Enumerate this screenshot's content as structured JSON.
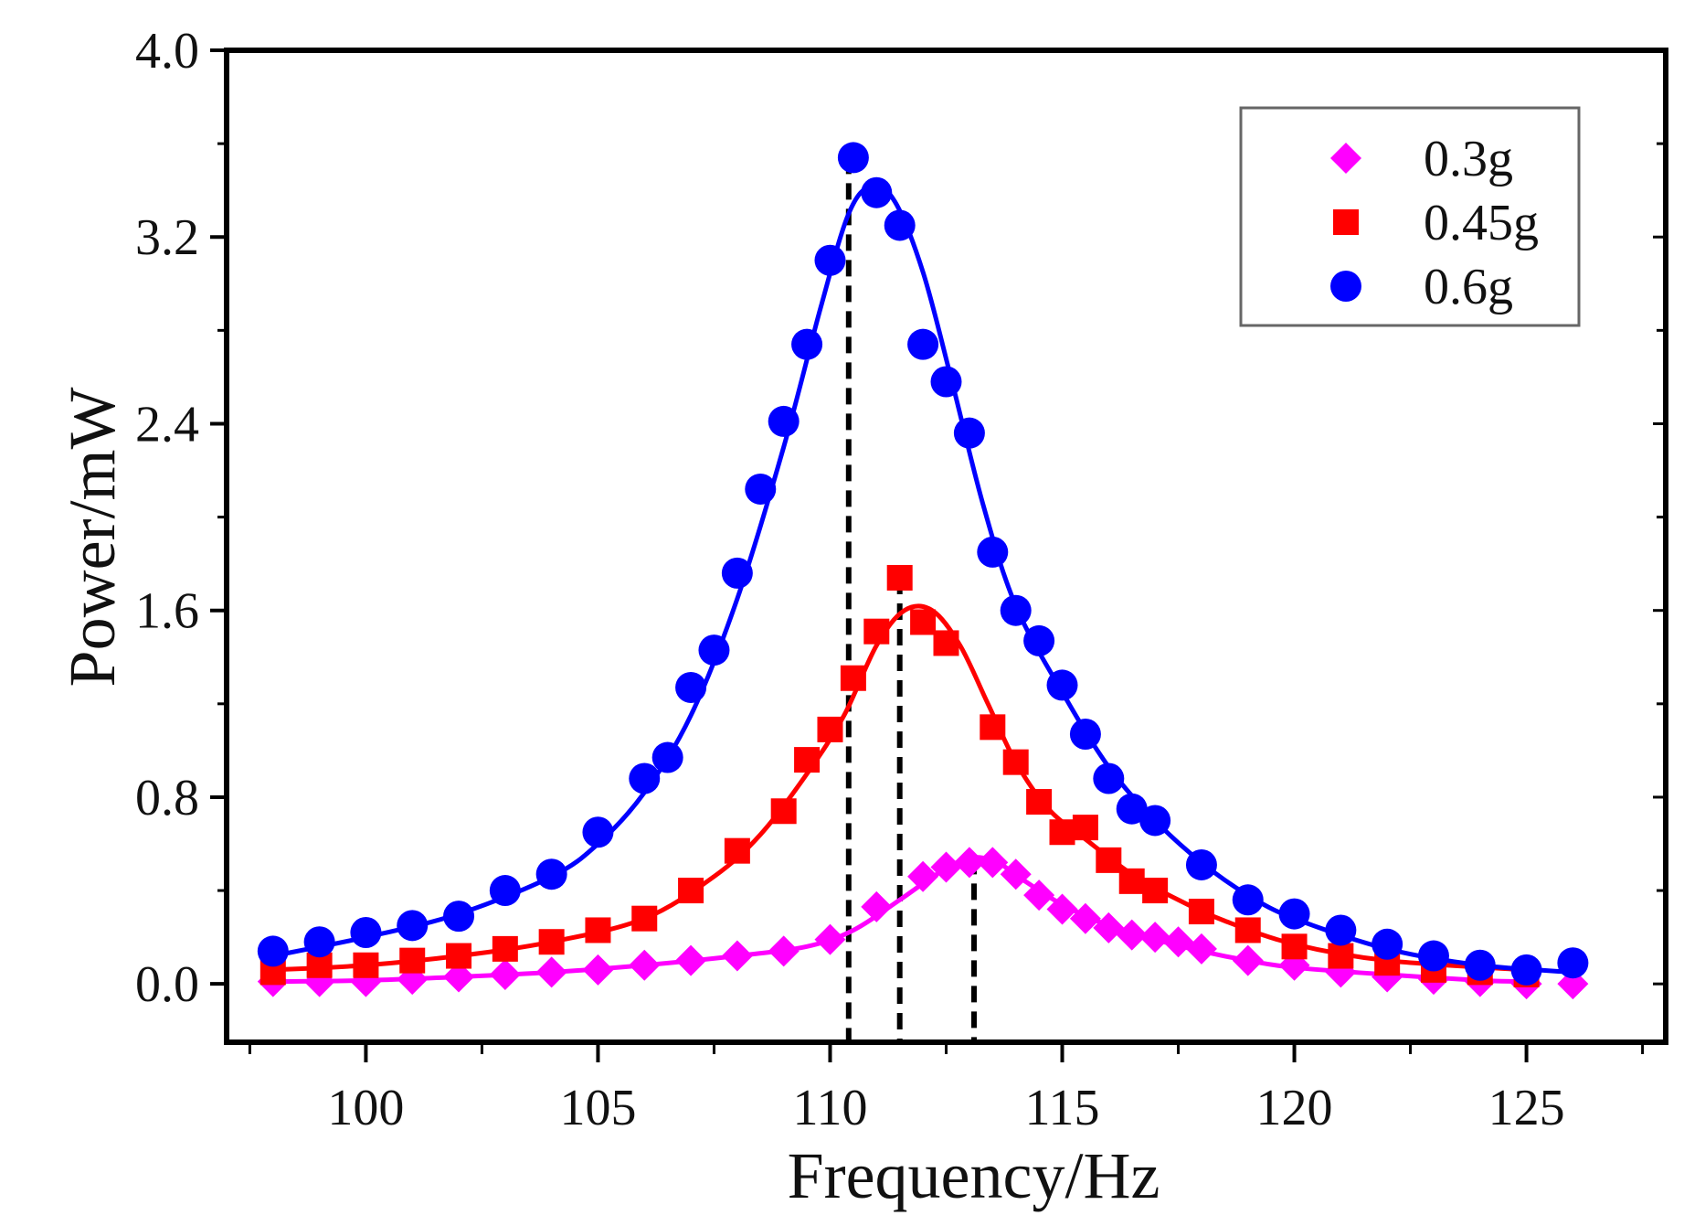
{
  "chart_data": {
    "type": "scatter",
    "title": "",
    "xlabel": "Frequency/Hz",
    "ylabel": "Power/mW",
    "xlim": [
      97,
      128
    ],
    "ylim": [
      -0.25,
      4.0
    ],
    "x_ticks": [
      100,
      105,
      110,
      115,
      120,
      125
    ],
    "x_tick_labels": [
      "100",
      "105",
      "110",
      "115",
      "120",
      "125"
    ],
    "y_ticks": [
      0.0,
      0.8,
      1.6,
      2.4,
      3.2,
      4.0
    ],
    "y_tick_labels": [
      "0.0",
      "0.8",
      "1.6",
      "2.4",
      "3.2",
      "4.0"
    ],
    "legend_position": "top-right",
    "series": [
      {
        "name": "0.3g",
        "marker": "diamond",
        "color": "#ff00ff",
        "points": [
          [
            98,
            0.01
          ],
          [
            99,
            0.01
          ],
          [
            100,
            0.01
          ],
          [
            101,
            0.02
          ],
          [
            102,
            0.03
          ],
          [
            103,
            0.04
          ],
          [
            104,
            0.05
          ],
          [
            105,
            0.06
          ],
          [
            106,
            0.08
          ],
          [
            107,
            0.1
          ],
          [
            108,
            0.12
          ],
          [
            109,
            0.14
          ],
          [
            110,
            0.19
          ],
          [
            111,
            0.33
          ],
          [
            112,
            0.46
          ],
          [
            112.5,
            0.5
          ],
          [
            113,
            0.52
          ],
          [
            113.5,
            0.52
          ],
          [
            114,
            0.47
          ],
          [
            114.5,
            0.38
          ],
          [
            115,
            0.32
          ],
          [
            115.5,
            0.28
          ],
          [
            116,
            0.24
          ],
          [
            116.5,
            0.21
          ],
          [
            117,
            0.2
          ],
          [
            117.5,
            0.18
          ],
          [
            118,
            0.15
          ],
          [
            119,
            0.1
          ],
          [
            120,
            0.08
          ],
          [
            121,
            0.05
          ],
          [
            122,
            0.03
          ],
          [
            123,
            0.02
          ],
          [
            124,
            0.01
          ],
          [
            125,
            0.0
          ],
          [
            126,
            0.0
          ]
        ],
        "fit": [
          [
            98,
            0.01
          ],
          [
            100,
            0.015
          ],
          [
            102,
            0.03
          ],
          [
            104,
            0.05
          ],
          [
            106,
            0.08
          ],
          [
            108,
            0.12
          ],
          [
            109.5,
            0.16
          ],
          [
            110.5,
            0.23
          ],
          [
            111.5,
            0.36
          ],
          [
            112.3,
            0.47
          ],
          [
            113,
            0.54
          ],
          [
            113.6,
            0.52
          ],
          [
            114.2,
            0.44
          ],
          [
            115,
            0.34
          ],
          [
            116,
            0.25
          ],
          [
            117,
            0.19
          ],
          [
            118,
            0.14
          ],
          [
            119,
            0.1
          ],
          [
            120,
            0.07
          ],
          [
            122,
            0.04
          ],
          [
            124,
            0.015
          ],
          [
            125,
            0.01
          ]
        ]
      },
      {
        "name": "0.45g",
        "marker": "square",
        "color": "#ff0000",
        "points": [
          [
            98,
            0.05
          ],
          [
            99,
            0.08
          ],
          [
            100,
            0.08
          ],
          [
            101,
            0.1
          ],
          [
            102,
            0.12
          ],
          [
            103,
            0.15
          ],
          [
            104,
            0.18
          ],
          [
            105,
            0.23
          ],
          [
            106,
            0.28
          ],
          [
            107,
            0.4
          ],
          [
            108,
            0.57
          ],
          [
            109,
            0.74
          ],
          [
            109.5,
            0.96
          ],
          [
            110,
            1.09
          ],
          [
            110.5,
            1.31
          ],
          [
            111,
            1.51
          ],
          [
            111.5,
            1.74
          ],
          [
            112,
            1.55
          ],
          [
            112.5,
            1.46
          ],
          [
            113.5,
            1.1
          ],
          [
            114,
            0.95
          ],
          [
            114.5,
            0.78
          ],
          [
            115,
            0.65
          ],
          [
            115.5,
            0.67
          ],
          [
            116,
            0.53
          ],
          [
            116.5,
            0.44
          ],
          [
            117,
            0.4
          ],
          [
            118,
            0.31
          ],
          [
            119,
            0.23
          ],
          [
            120,
            0.16
          ],
          [
            121,
            0.12
          ],
          [
            122,
            0.09
          ],
          [
            123,
            0.06
          ],
          [
            124,
            0.05
          ],
          [
            125,
            0.04
          ]
        ],
        "fit": [
          [
            98,
            0.06
          ],
          [
            100,
            0.08
          ],
          [
            102,
            0.12
          ],
          [
            104,
            0.18
          ],
          [
            106,
            0.28
          ],
          [
            107.5,
            0.46
          ],
          [
            108.5,
            0.64
          ],
          [
            109.5,
            0.9
          ],
          [
            110.3,
            1.15
          ],
          [
            111,
            1.45
          ],
          [
            111.6,
            1.6
          ],
          [
            112.2,
            1.6
          ],
          [
            112.8,
            1.45
          ],
          [
            113.4,
            1.2
          ],
          [
            114,
            0.95
          ],
          [
            114.7,
            0.75
          ],
          [
            115.5,
            0.62
          ],
          [
            116.5,
            0.47
          ],
          [
            117.5,
            0.36
          ],
          [
            118.5,
            0.27
          ],
          [
            120,
            0.17
          ],
          [
            122,
            0.1
          ],
          [
            125,
            0.06
          ]
        ]
      },
      {
        "name": "0.6g",
        "marker": "circle",
        "color": "#0000ff",
        "points": [
          [
            98,
            0.14
          ],
          [
            99,
            0.18
          ],
          [
            100,
            0.22
          ],
          [
            101,
            0.25
          ],
          [
            102,
            0.29
          ],
          [
            103,
            0.4
          ],
          [
            104,
            0.47
          ],
          [
            105,
            0.65
          ],
          [
            106,
            0.88
          ],
          [
            106.5,
            0.97
          ],
          [
            107,
            1.27
          ],
          [
            107.5,
            1.43
          ],
          [
            108,
            1.76
          ],
          [
            108.5,
            2.12
          ],
          [
            109,
            2.41
          ],
          [
            109.5,
            2.74
          ],
          [
            110,
            3.1
          ],
          [
            110.5,
            3.54
          ],
          [
            111,
            3.39
          ],
          [
            111.5,
            3.25
          ],
          [
            112,
            2.74
          ],
          [
            112.5,
            2.58
          ],
          [
            113,
            2.36
          ],
          [
            113.5,
            1.85
          ],
          [
            114,
            1.6
          ],
          [
            114.5,
            1.47
          ],
          [
            115,
            1.28
          ],
          [
            115.5,
            1.07
          ],
          [
            116,
            0.88
          ],
          [
            116.5,
            0.75
          ],
          [
            117,
            0.7
          ],
          [
            118,
            0.51
          ],
          [
            119,
            0.36
          ],
          [
            120,
            0.3
          ],
          [
            121,
            0.23
          ],
          [
            122,
            0.17
          ],
          [
            123,
            0.12
          ],
          [
            124,
            0.08
          ],
          [
            125,
            0.06
          ],
          [
            126,
            0.09
          ]
        ],
        "fit": [
          [
            98,
            0.12
          ],
          [
            100,
            0.2
          ],
          [
            102,
            0.3
          ],
          [
            104,
            0.46
          ],
          [
            105,
            0.6
          ],
          [
            106,
            0.82
          ],
          [
            107,
            1.15
          ],
          [
            108,
            1.65
          ],
          [
            109,
            2.3
          ],
          [
            109.8,
            2.9
          ],
          [
            110.4,
            3.3
          ],
          [
            110.9,
            3.42
          ],
          [
            111.4,
            3.35
          ],
          [
            112,
            3.05
          ],
          [
            112.6,
            2.6
          ],
          [
            113.3,
            2.05
          ],
          [
            114,
            1.62
          ],
          [
            115,
            1.25
          ],
          [
            116,
            0.93
          ],
          [
            117,
            0.7
          ],
          [
            118,
            0.52
          ],
          [
            119,
            0.38
          ],
          [
            120,
            0.28
          ],
          [
            122,
            0.15
          ],
          [
            124,
            0.08
          ],
          [
            126,
            0.05
          ]
        ]
      }
    ],
    "reference_lines": [
      {
        "x": 110.4,
        "y_top": 3.54
      },
      {
        "x": 111.5,
        "y_top": 1.74
      },
      {
        "x": 113.1,
        "y_top": 0.54
      }
    ]
  }
}
